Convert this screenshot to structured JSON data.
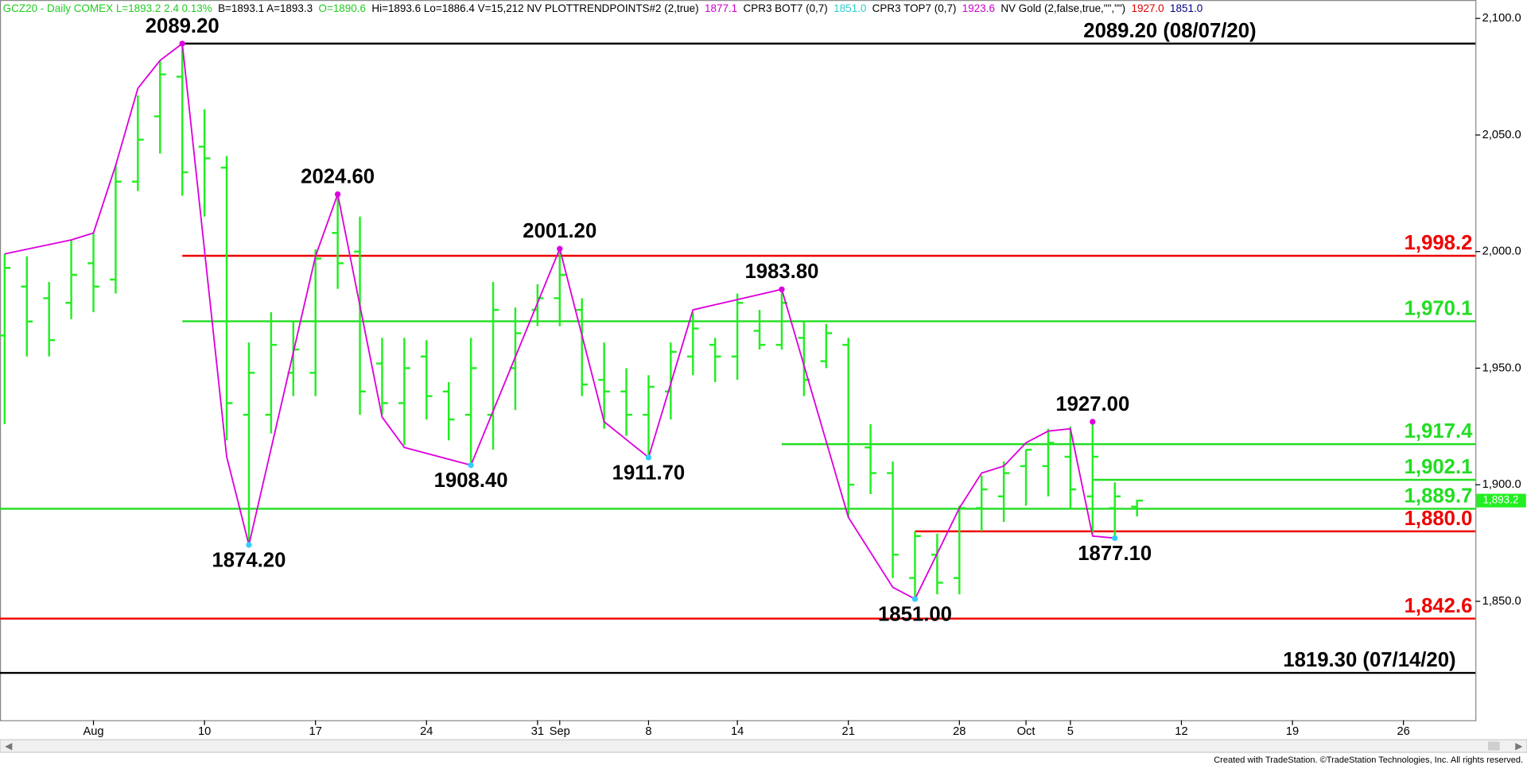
{
  "header": [
    {
      "text": "GCZ20 - Daily  COMEX  L=1893.2  2.4  0.13%",
      "color": "#22cc22"
    },
    {
      "text": "B=1893.1  A=1893.3",
      "color": "#000000"
    },
    {
      "text": "O=1890.6",
      "color": "#22cc22"
    },
    {
      "text": "Hi=1893.6  Lo=1886.4  V=15,212  NV  PLOTTRENDPOINTS#2 (2,true)",
      "color": "#000000"
    },
    {
      "text": "1877.1",
      "color": "#cc00cc"
    },
    {
      "text": "CPR3 BOT7 (0,7)",
      "color": "#000000"
    },
    {
      "text": "1851.0",
      "color": "#33cccc"
    },
    {
      "text": "CPR3 TOP7 (0,7)",
      "color": "#000000"
    },
    {
      "text": "1923.6",
      "color": "#cc00cc"
    },
    {
      "text": "NV Gold (2,false,true,\"\",\"\")",
      "color": "#000000"
    },
    {
      "text": "1927.0",
      "color": "#dd0000"
    },
    {
      "text": "1851.0",
      "color": "#000080"
    }
  ],
  "footer": "Created with TradeStation. ©TradeStation Technologies, Inc. All rights reserved.",
  "chart_data": {
    "type": "ohlc",
    "color": "#22ee22",
    "x": [
      -4,
      -3,
      -2,
      -1,
      0,
      1,
      2,
      3,
      4,
      5,
      6,
      7,
      8,
      9,
      10,
      11,
      12,
      13,
      14,
      15,
      16,
      17,
      18,
      19,
      20,
      21,
      22,
      23,
      24,
      25,
      26,
      27,
      28,
      29,
      30,
      31,
      32,
      33,
      34,
      35,
      36,
      37,
      38,
      39,
      40,
      41,
      42,
      43,
      44,
      45,
      46,
      47
    ],
    "open": [
      1964,
      1985,
      1980,
      1978,
      1995,
      1988,
      2030,
      2058,
      2075,
      2045,
      2036,
      1930,
      1930,
      1948,
      1948,
      2008,
      2000,
      1952,
      1935,
      1955,
      1940,
      1930,
      1930,
      1950,
      1975,
      1980,
      1975,
      1945,
      1940,
      1930,
      1940,
      1955,
      1960,
      1955,
      1966,
      1960,
      1963,
      1953,
      1960,
      1916,
      1905,
      1860,
      1870,
      1860,
      1890,
      1895,
      1908,
      1908,
      1912,
      1895,
      1890,
      1890.6
    ],
    "high": [
      1999,
      1998,
      1987,
      2005,
      2008,
      2037,
      2067,
      2082,
      2089.2,
      2061,
      2041,
      1961,
      1974,
      1970,
      2001,
      2024.6,
      2015,
      1963,
      1963,
      1962,
      1944,
      1963,
      1987,
      1976,
      1986,
      2001.2,
      1980,
      1961,
      1950,
      1947,
      1961,
      1974,
      1963,
      1982,
      1975,
      1983.8,
      1970,
      1969,
      1963,
      1926,
      1910,
      1880,
      1879,
      1891,
      1904,
      1910,
      1915,
      1924,
      1925,
      1927,
      1901,
      1893.6
    ],
    "low": [
      1926,
      1955,
      1955,
      1971,
      1974,
      1982,
      2026,
      2042,
      2024,
      2015,
      1919,
      1874.2,
      1922,
      1938,
      1938,
      1984,
      1930,
      1930,
      1917,
      1928,
      1919,
      1908.4,
      1915,
      1932,
      1968,
      1968,
      1938,
      1924,
      1921,
      1911.7,
      1928,
      1947,
      1944,
      1945,
      1958,
      1958,
      1938,
      1950,
      1886,
      1896,
      1860,
      1851,
      1853,
      1853,
      1880,
      1884,
      1891,
      1895,
      1890,
      1879,
      1877.1,
      1886.4
    ],
    "close": [
      1993,
      1970,
      1962,
      1990,
      1985,
      2030,
      2048,
      2076,
      2034,
      2040,
      1935,
      1948,
      1960,
      1958,
      1997,
      1995,
      1940,
      1935,
      1950,
      1938,
      1928,
      1950,
      1975,
      1965,
      1980,
      1990,
      1943,
      1940,
      1930,
      1942,
      1957,
      1967,
      1955,
      1978,
      1960,
      1978,
      1945,
      1965,
      1900,
      1905,
      1870,
      1878,
      1858,
      1890,
      1898,
      1905,
      1915,
      1918,
      1898,
      1912,
      1895,
      1893.2
    ],
    "trend": {
      "color": "#dd00dd",
      "x": [
        -4,
        -1,
        0,
        1,
        2,
        3,
        4,
        6,
        7,
        10,
        11,
        13,
        14,
        17,
        21,
        23,
        25,
        27,
        31,
        34,
        36,
        37,
        39,
        40,
        41,
        42,
        43,
        44,
        45,
        46
      ],
      "values": [
        1999,
        2005,
        2008,
        2037,
        2070,
        2082,
        2089.2,
        1912,
        1874.2,
        1998,
        2024.6,
        1929,
        1916,
        1908.4,
        2001.2,
        1927,
        1911.7,
        1975,
        1983.8,
        1886,
        1856,
        1851,
        1890,
        1905,
        1908,
        1918,
        1923,
        1924,
        1878,
        1877.1
      ]
    },
    "pivots": [
      {
        "label": "2089.20",
        "x": 4,
        "value": 2089.2,
        "position": "above",
        "color": "#dd00dd"
      },
      {
        "label": "2024.60",
        "x": 11,
        "value": 2024.6,
        "position": "above",
        "color": "#dd00dd"
      },
      {
        "label": "2001.20",
        "x": 21,
        "value": 2001.2,
        "position": "above",
        "color": "#dd00dd"
      },
      {
        "label": "1983.80",
        "x": 31,
        "value": 1983.8,
        "position": "above",
        "color": "#dd00dd"
      },
      {
        "label": "1927.00",
        "x": 45,
        "value": 1927,
        "position": "above",
        "color": "#dd00dd"
      },
      {
        "label": "1874.20",
        "x": 7,
        "value": 1874.2,
        "position": "below",
        "color": "#33ccff"
      },
      {
        "label": "1908.40",
        "x": 17,
        "value": 1908.4,
        "position": "below",
        "color": "#33ccff"
      },
      {
        "label": "1911.70",
        "x": 25,
        "value": 1911.7,
        "position": "below",
        "color": "#33ccff"
      },
      {
        "label": "1851.00",
        "x": 37,
        "value": 1851,
        "position": "below",
        "color": "#33ccff"
      },
      {
        "label": "1877.10",
        "x": 46,
        "value": 1877.1,
        "position": "below",
        "color": "#33ccff"
      }
    ],
    "levels": [
      {
        "value": 2089.2,
        "label": "2089.20 (08/07/20)",
        "color": "#000000",
        "start": 4
      },
      {
        "value": 1998.2,
        "label": "1,998.2",
        "color": "#ee0000",
        "start": 4
      },
      {
        "value": 1970.1,
        "label": "1,970.1",
        "color": "#22dd22",
        "start": 4
      },
      {
        "value": 1917.4,
        "label": "1,917.4",
        "color": "#22dd22",
        "start": 31
      },
      {
        "value": 1902.1,
        "label": "1,902.1",
        "color": "#22dd22",
        "start": 45
      },
      {
        "value": 1889.7,
        "label": "1,889.7",
        "color": "#22dd22",
        "start": null
      },
      {
        "value": 1880,
        "label": "1,880.0",
        "color": "#ee0000",
        "start": 37
      },
      {
        "value": 1842.6,
        "label": "1,842.6",
        "color": "#ee0000",
        "start": null
      },
      {
        "value": 1819.3,
        "label": "1819.30 (07/14/20)",
        "color": "#000000",
        "start": null
      }
    ],
    "last_price": {
      "value": 1893.2,
      "label": "1,893.2",
      "color": "#22ee22"
    },
    "xlim": [
      -4.21,
      62.24
    ],
    "ylim": [
      1799,
      2107.9
    ],
    "xticks": [
      {
        "value": 0,
        "label": "Aug"
      },
      {
        "value": 5,
        "label": "10"
      },
      {
        "value": 10,
        "label": "17"
      },
      {
        "value": 15,
        "label": "24"
      },
      {
        "value": 20,
        "label": "31"
      },
      {
        "value": 21,
        "label": "Sep"
      },
      {
        "value": 25,
        "label": "8"
      },
      {
        "value": 29,
        "label": "14"
      },
      {
        "value": 34,
        "label": "21"
      },
      {
        "value": 39,
        "label": "28"
      },
      {
        "value": 42,
        "label": "Oct"
      },
      {
        "value": 44,
        "label": "5"
      },
      {
        "value": 49,
        "label": "12"
      },
      {
        "value": 54,
        "label": "19"
      },
      {
        "value": 59,
        "label": "26"
      }
    ],
    "yticks": [
      {
        "value": 1850,
        "label": "1,850.0"
      },
      {
        "value": 1900,
        "label": "1,900.0"
      },
      {
        "value": 1950,
        "label": "1,950.0"
      },
      {
        "value": 2000,
        "label": "2,000.0"
      },
      {
        "value": 2050,
        "label": "2,050.0"
      },
      {
        "value": 2100,
        "label": "2,100.0"
      }
    ]
  }
}
